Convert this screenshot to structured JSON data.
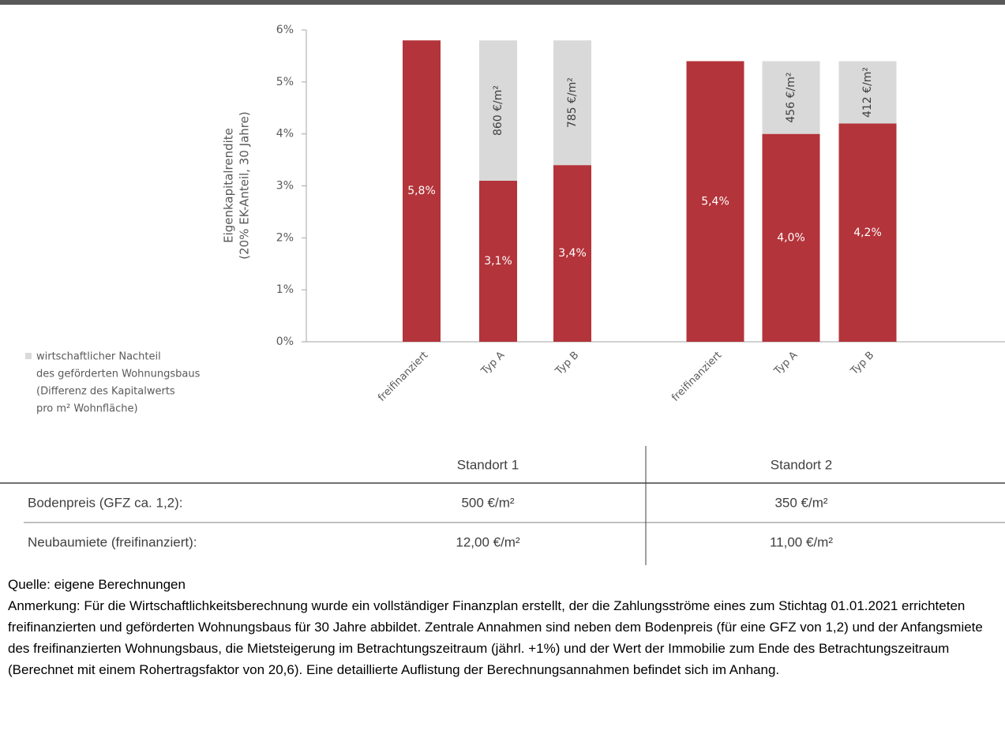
{
  "chart_data": {
    "type": "bar",
    "stacked": true,
    "ylabel": [
      "Eigenkapitalrendite",
      "(20% EK-Anteil, 30 Jahre)"
    ],
    "categories": [
      "freifinanziert",
      "Typ A",
      "Typ B",
      "freifinanziert",
      "Typ A",
      "Typ B"
    ],
    "ylim": [
      0,
      6
    ],
    "yticks": [
      {
        "value": 0,
        "label": "0%"
      },
      {
        "value": 1,
        "label": "1%"
      },
      {
        "value": 2,
        "label": "2%"
      },
      {
        "value": 3,
        "label": "3%"
      },
      {
        "value": 4,
        "label": "4%"
      },
      {
        "value": 5,
        "label": "5%"
      },
      {
        "value": 6,
        "label": "6%"
      }
    ],
    "series": [
      {
        "color": "#b3343a",
        "values": [
          5.8,
          3.1,
          3.4,
          5.4,
          4.0,
          4.2
        ],
        "value_labels": [
          "5,8%",
          "3,1%",
          "3,4%",
          "5,4%",
          "4,0%",
          "4,2%"
        ]
      },
      {
        "name": [
          "wirtschaftlicher Nachteil",
          "des geförderten Wohnungsbaus",
          "(Differenz des Kapitalwerts",
          "pro m² Wohnfläche)"
        ],
        "color": "#d9d9d9",
        "values": [
          null,
          2.7,
          2.4,
          null,
          1.4,
          1.2
        ],
        "annotations": [
          null,
          "860 €/m²",
          "785 €/m²",
          null,
          "456 €/m²",
          "412 €/m²"
        ]
      }
    ]
  },
  "table": {
    "header": [
      "Standort 1",
      "Standort 2"
    ],
    "rows": [
      [
        "Bodenpreis (GFZ ca. 1,2):",
        "500 €/m²",
        "350 €/m²"
      ],
      [
        "Neubaumiete (freifinanziert):",
        "12,00 €/m²",
        "11,00 €/m²"
      ]
    ]
  },
  "source": "Quelle: eigene Berechnungen",
  "note": "Anmerkung: Für die Wirtschaftlichkeitsberechnung wurde ein vollständiger Finanzplan erstellt, der die Zahlungsströme eines zum Stichtag 01.01.2021 errichteten freifinanzierten und geförderten Wohnungsbaus für 30 Jahre abbildet. Zentrale Annahmen sind neben dem Bodenpreis (für eine GFZ von 1,2) und der Anfangsmiete des freifinanzierten Wohnungsbaus, die Mietsteigerung im Betrachtungszeitraum (jährl. +1%) und der Wert der Immobilie zum Ende des Betrachtungszeitraum (Berechnet mit einem Rohertragsfaktor von 20,6). Eine detaillierte Auflistung der Berechnungsannahmen befindet sich im Anhang."
}
